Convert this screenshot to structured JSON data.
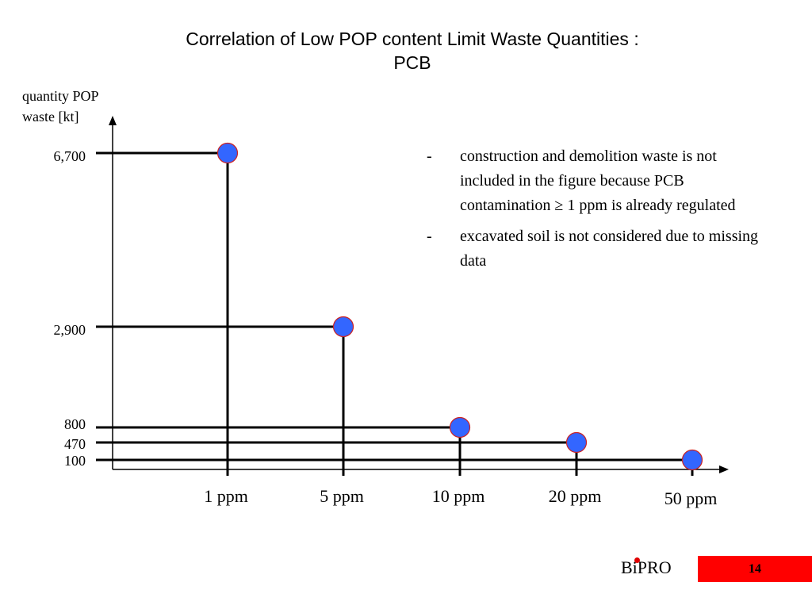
{
  "slide": {
    "title_line1": "Correlation of Low POP content Limit Waste Quantities :",
    "title_line2": "PCB",
    "logo": "BiPRO",
    "page_number": "14"
  },
  "notes": [
    {
      "dash": "-",
      "text": "construction and demolition waste is not included in the figure because PCB contamination ≥ 1 ppm is already regulated"
    },
    {
      "dash": "-",
      "text": "excavated soil is not considered due to missing data"
    }
  ],
  "chart_data": {
    "type": "scatter",
    "ylabel_line1": "quantity POP",
    "ylabel_line2": "waste [kt]",
    "xlabel": "",
    "categories": [
      "1 ppm",
      "5 ppm",
      "10 ppm",
      "20 ppm",
      "50 ppm"
    ],
    "values": [
      6700,
      2900,
      800,
      470,
      100
    ],
    "y_tick_labels": [
      "6,700",
      "2,900",
      "800",
      "470",
      "100"
    ],
    "marker_color": "#3366ff",
    "marker_edge_color": "#cc2222"
  }
}
